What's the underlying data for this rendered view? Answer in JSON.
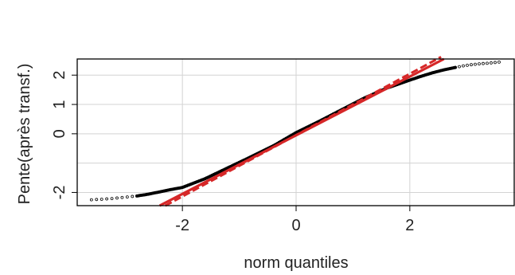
{
  "chart_data": {
    "type": "scatter",
    "title": "",
    "xlabel": "norm quantiles",
    "ylabel": "Pente(après transf.)",
    "xlim": [
      -3.85,
      3.85
    ],
    "ylim": [
      -2.45,
      2.55
    ],
    "x_ticks": [
      -2,
      0,
      2
    ],
    "x_tick_labels": [
      "-2",
      "0",
      "2"
    ],
    "y_ticks": [
      -2,
      0,
      1,
      2
    ],
    "y_tick_labels": [
      "-2",
      "0",
      "1",
      "2"
    ],
    "grid_x": [
      -2,
      0,
      2
    ],
    "grid_y": [
      -2,
      -1,
      0,
      1,
      2
    ],
    "grid": true,
    "legend": "none",
    "point_color": "#000000",
    "reference_line_color": "#d62728",
    "reference_lines": [
      {
        "style": "solid",
        "x": [
          -2.4,
          2.6
        ],
        "y": [
          -2.45,
          2.55
        ]
      },
      {
        "style": "dashed",
        "x": [
          -2.3,
          2.55
        ],
        "y": [
          -2.45,
          2.62
        ]
      }
    ],
    "sample_points": {
      "x": [
        -3.6,
        -3.4,
        -3.25,
        -3.1,
        -2.95,
        -2.8,
        -2.6,
        -2.4,
        -2.2,
        -2.0,
        -1.6,
        -1.2,
        -0.8,
        -0.4,
        0.0,
        0.4,
        0.8,
        1.2,
        1.6,
        2.0,
        2.2,
        2.4,
        2.6,
        2.8,
        2.95,
        3.1,
        3.25,
        3.4,
        3.6
      ],
      "y": [
        -2.25,
        -2.23,
        -2.21,
        -2.18,
        -2.15,
        -2.12,
        -2.06,
        -1.98,
        -1.9,
        -1.83,
        -1.53,
        -1.16,
        -0.79,
        -0.41,
        0.04,
        0.42,
        0.82,
        1.22,
        1.56,
        1.83,
        1.96,
        2.08,
        2.18,
        2.26,
        2.32,
        2.36,
        2.39,
        2.41,
        2.45
      ]
    }
  }
}
